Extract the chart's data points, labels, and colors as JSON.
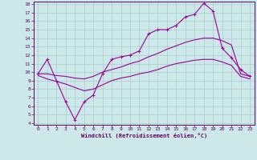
{
  "xlabel": "Windchill (Refroidissement éolien,°C)",
  "bg_color": "#cce8e8",
  "line_color": "#990099",
  "grid_color": "#aacccc",
  "xlim": [
    -0.5,
    23.5
  ],
  "ylim": [
    3.8,
    18.3
  ],
  "xticks": [
    0,
    1,
    2,
    3,
    4,
    5,
    6,
    7,
    8,
    9,
    10,
    11,
    12,
    13,
    14,
    15,
    16,
    17,
    18,
    19,
    20,
    21,
    22,
    23
  ],
  "yticks": [
    4,
    5,
    6,
    7,
    8,
    9,
    10,
    11,
    12,
    13,
    14,
    15,
    16,
    17,
    18
  ],
  "line1_x": [
    0,
    1,
    2,
    3,
    4,
    5,
    6,
    7,
    8,
    9,
    10,
    11,
    12,
    13,
    14,
    15,
    16,
    17,
    18,
    19,
    20,
    21,
    22,
    23
  ],
  "line1_y": [
    9.8,
    11.5,
    9.0,
    6.5,
    4.4,
    6.5,
    7.3,
    9.8,
    11.5,
    11.8,
    12.0,
    12.5,
    14.5,
    15.0,
    15.0,
    15.5,
    16.5,
    16.8,
    18.1,
    17.2,
    12.8,
    11.7,
    10.3,
    9.5
  ],
  "line2_x": [
    0,
    1,
    2,
    3,
    4,
    5,
    6,
    7,
    8,
    9,
    10,
    11,
    12,
    13,
    14,
    15,
    16,
    17,
    18,
    19,
    20,
    21,
    22,
    23
  ],
  "line2_y": [
    9.8,
    9.8,
    9.6,
    9.5,
    9.3,
    9.2,
    9.5,
    10.0,
    10.3,
    10.6,
    11.0,
    11.3,
    11.8,
    12.2,
    12.7,
    13.1,
    13.5,
    13.8,
    14.0,
    14.0,
    13.7,
    13.2,
    9.8,
    9.5
  ],
  "line3_x": [
    0,
    1,
    2,
    3,
    4,
    5,
    6,
    7,
    8,
    9,
    10,
    11,
    12,
    13,
    14,
    15,
    16,
    17,
    18,
    19,
    20,
    21,
    22,
    23
  ],
  "line3_y": [
    9.6,
    9.2,
    8.9,
    8.6,
    8.2,
    7.8,
    8.0,
    8.5,
    9.0,
    9.3,
    9.5,
    9.8,
    10.0,
    10.3,
    10.7,
    11.0,
    11.2,
    11.4,
    11.5,
    11.5,
    11.2,
    10.8,
    9.5,
    9.2
  ]
}
